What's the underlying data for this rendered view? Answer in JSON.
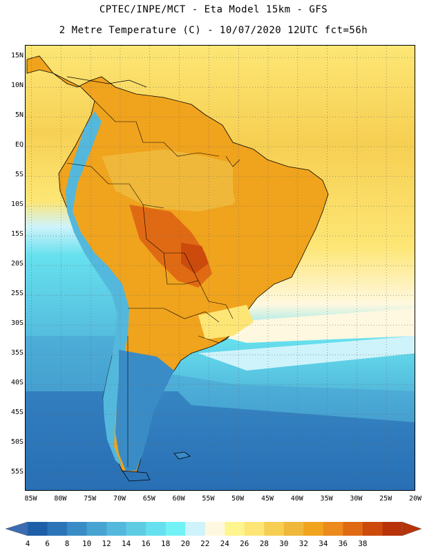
{
  "header": {
    "line1": "CPTEC/INPE/MCT -  Eta Model 15km - GFS",
    "line2": "2 Metre Temperature (C) - 10/07/2020 12UTC fct=56h"
  },
  "map": {
    "lat_range": [
      -58,
      17
    ],
    "lon_range": [
      -86,
      -20
    ],
    "lat_ticks": [
      {
        "value": 15,
        "label": "15N"
      },
      {
        "value": 10,
        "label": "10N"
      },
      {
        "value": 5,
        "label": "5N"
      },
      {
        "value": 0,
        "label": "EQ"
      },
      {
        "value": -5,
        "label": "5S"
      },
      {
        "value": -10,
        "label": "10S"
      },
      {
        "value": -15,
        "label": "15S"
      },
      {
        "value": -20,
        "label": "20S"
      },
      {
        "value": -25,
        "label": "25S"
      },
      {
        "value": -30,
        "label": "30S"
      },
      {
        "value": -35,
        "label": "35S"
      },
      {
        "value": -40,
        "label": "40S"
      },
      {
        "value": -45,
        "label": "45S"
      },
      {
        "value": -50,
        "label": "50S"
      },
      {
        "value": -55,
        "label": "55S"
      }
    ],
    "lon_ticks": [
      {
        "value": -85,
        "label": "85W"
      },
      {
        "value": -80,
        "label": "80W"
      },
      {
        "value": -75,
        "label": "75W"
      },
      {
        "value": -70,
        "label": "70W"
      },
      {
        "value": -65,
        "label": "65W"
      },
      {
        "value": -60,
        "label": "60W"
      },
      {
        "value": -55,
        "label": "55W"
      },
      {
        "value": -50,
        "label": "50W"
      },
      {
        "value": -45,
        "label": "45W"
      },
      {
        "value": -40,
        "label": "40W"
      },
      {
        "value": -35,
        "label": "35W"
      },
      {
        "value": -30,
        "label": "30W"
      },
      {
        "value": -25,
        "label": "25W"
      },
      {
        "value": -20,
        "label": "20W"
      }
    ]
  },
  "colorbar": {
    "labels": [
      "4",
      "6",
      "8",
      "10",
      "12",
      "14",
      "16",
      "18",
      "20",
      "22",
      "24",
      "26",
      "28",
      "30",
      "32",
      "34",
      "36",
      "38"
    ],
    "colors": [
      "#1f5fa8",
      "#2c74b8",
      "#3a8cc6",
      "#47a3d2",
      "#53b8dc",
      "#5fcce4",
      "#66e0ee",
      "#73f2f6",
      "#cff3fb",
      "#fff8e0",
      "#fff58e",
      "#fde675",
      "#f6cf52",
      "#efb83a",
      "#f0a31d",
      "#ec8a1e",
      "#e06a14",
      "#cc4a0c",
      "#b8330a"
    ],
    "low_color": "#3a6cb0",
    "high_color": "#b8330a"
  },
  "colors": {
    "ocean_n": "#f6cf52",
    "ocean_warm": "#fde675",
    "ocean_mid": "#fff8e0",
    "ocean_cool": "#66e0ee",
    "ocean_cold": "#47a3d2",
    "ocean_deep": "#2c74b8"
  }
}
